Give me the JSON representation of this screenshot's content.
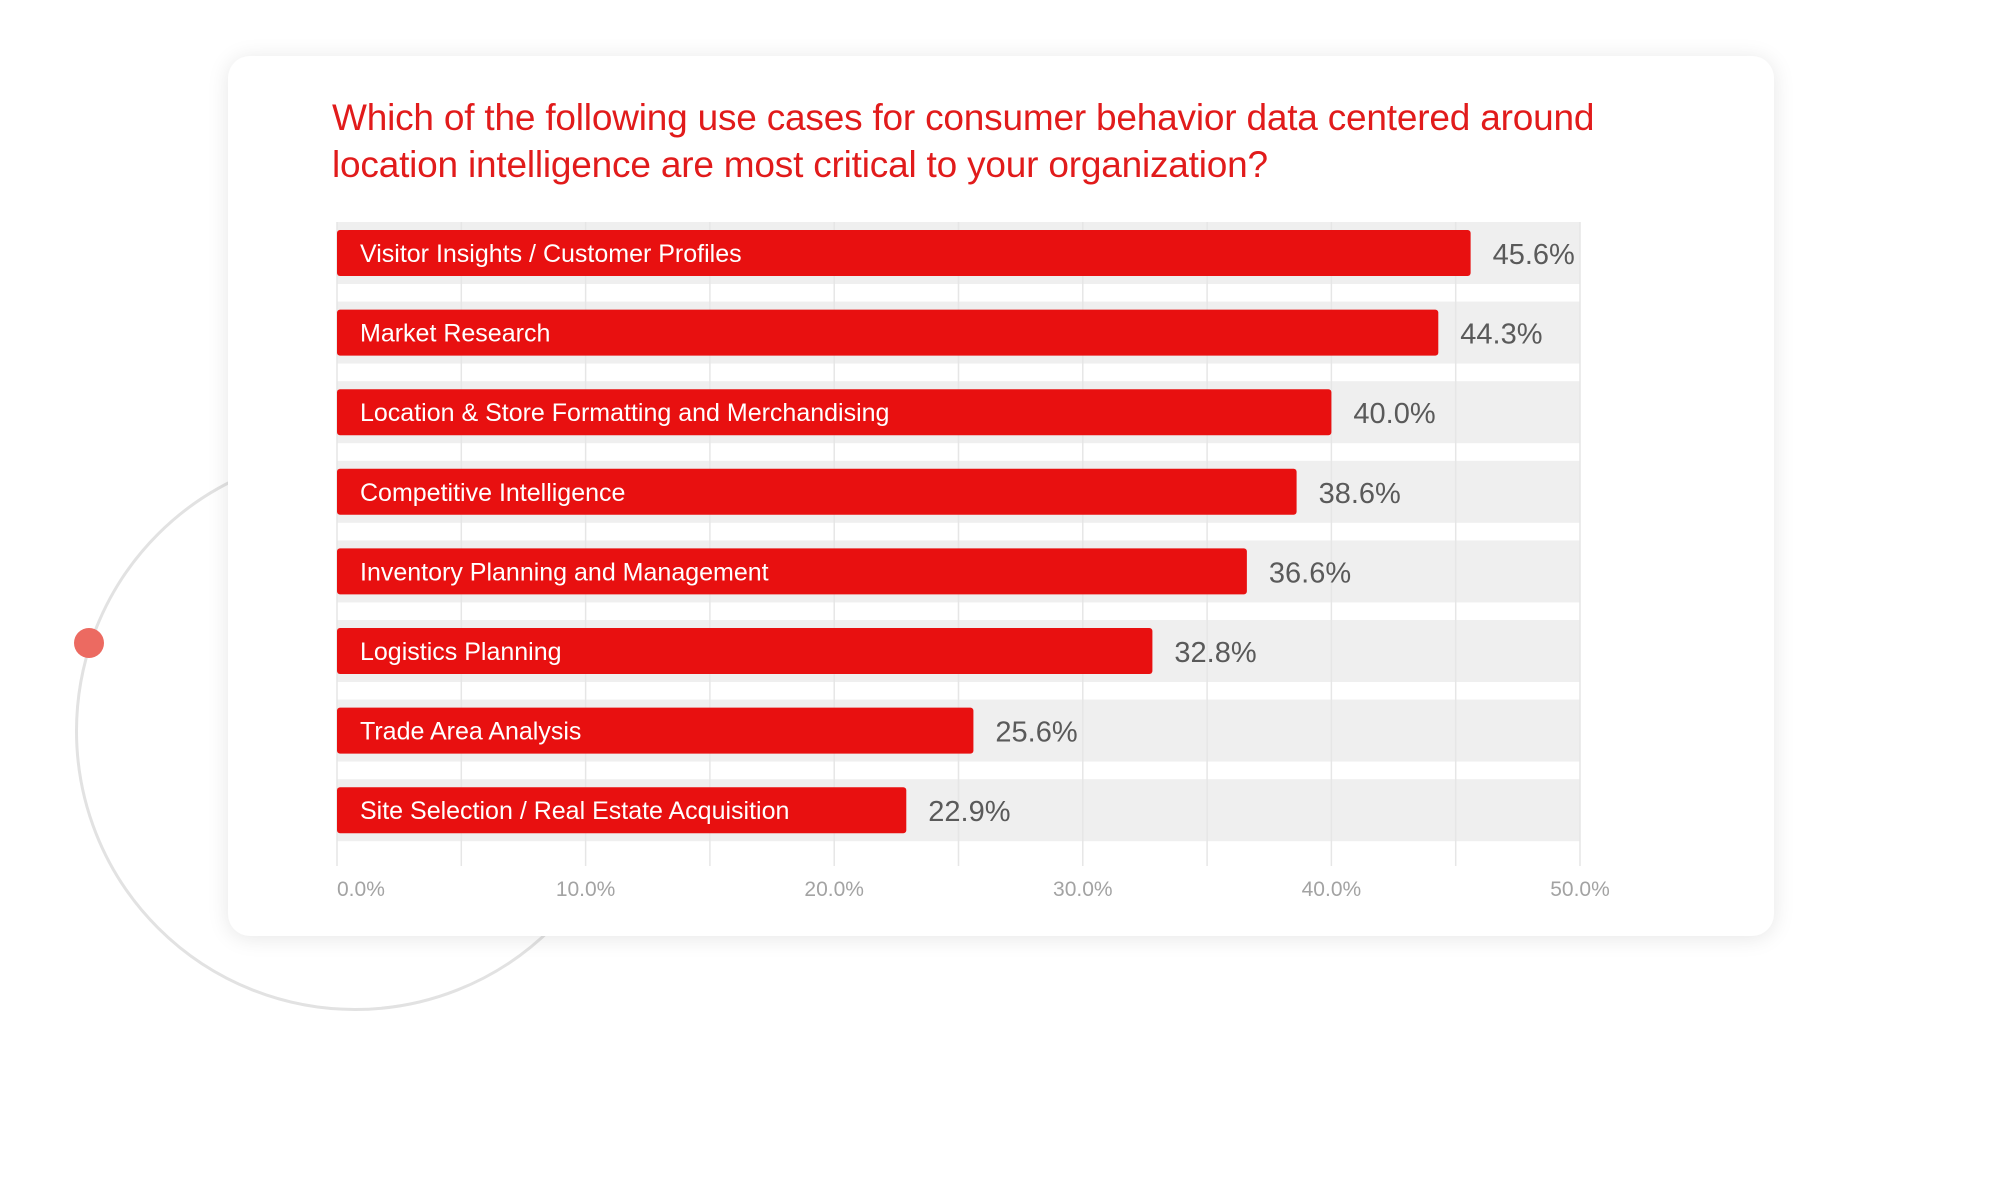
{
  "chart_data": {
    "type": "bar",
    "orientation": "horizontal",
    "title": "Which of the following use cases for consumer behavior data centered around location intelligence are most critical to your organization?",
    "categories": [
      "Visitor Insights / Customer Profiles",
      "Market Research",
      "Location & Store Formatting and Merchandising",
      "Competitive Intelligence",
      "Inventory Planning and Management",
      "Logistics Planning",
      "Trade Area Analysis",
      "Site Selection / Real Estate Acquisition"
    ],
    "values": [
      45.6,
      44.3,
      40.0,
      38.6,
      36.6,
      32.8,
      25.6,
      22.9
    ],
    "value_labels": [
      "45.6%",
      "44.3%",
      "40.0%",
      "38.6%",
      "36.6%",
      "32.8%",
      "25.6%",
      "22.9%"
    ],
    "xlim": [
      0,
      50
    ],
    "x_ticks": [
      0,
      10,
      20,
      30,
      40,
      50
    ],
    "x_tick_labels": [
      "0.0%",
      "10.0%",
      "20.0%",
      "30.0%",
      "40.0%",
      "50.0%"
    ],
    "grid": true,
    "colors": {
      "bar": "#e81010",
      "track": "#efefef",
      "title": "#e11b1b",
      "value_text": "#5a5a5a",
      "tick_text": "#a3a3a3"
    }
  }
}
